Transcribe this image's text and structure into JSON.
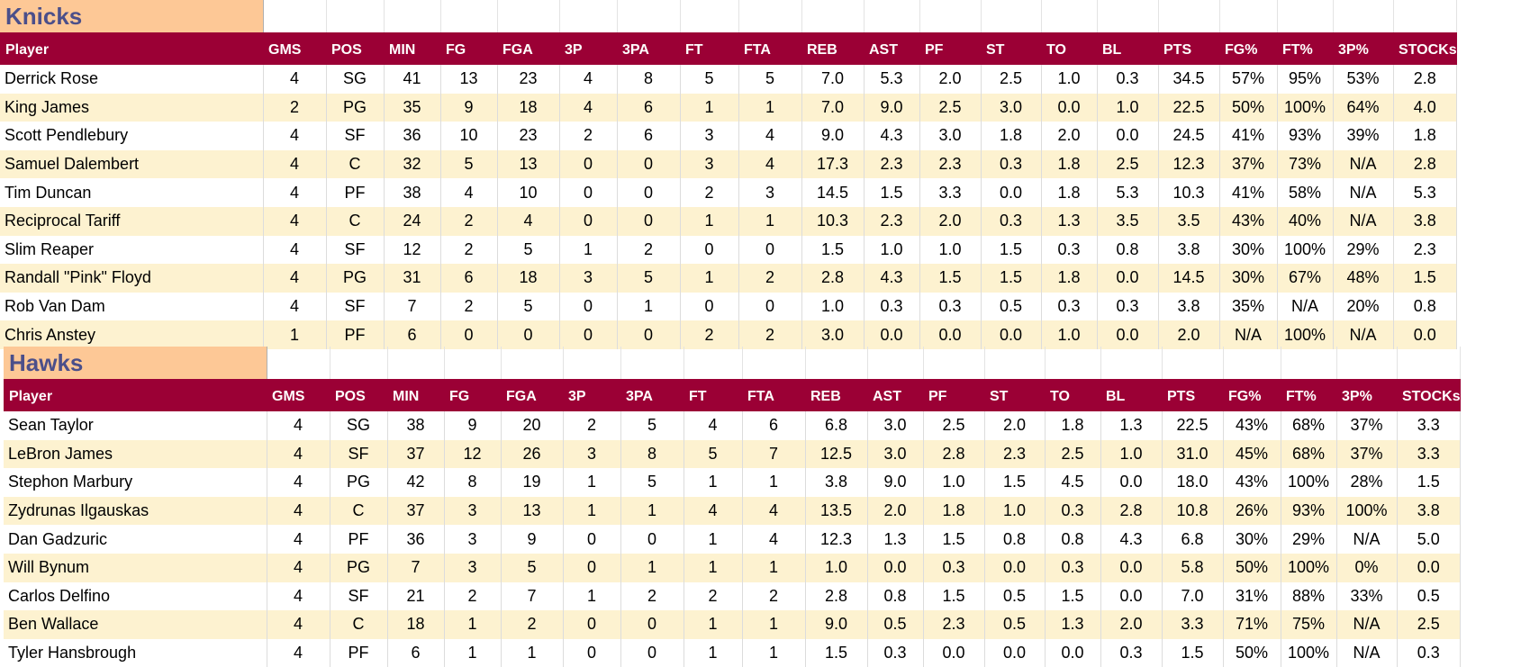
{
  "columns": [
    "Player",
    "GMS",
    "POS",
    "MIN",
    "FG",
    "FGA",
    "3P",
    "3PA",
    "FT",
    "FTA",
    "REB",
    "AST",
    "PF",
    "ST",
    "TO",
    "BL",
    "PTS",
    "FG%",
    "FT%",
    "3P%",
    "STOCKs"
  ],
  "teams": [
    {
      "name": "Knicks",
      "rows": [
        [
          "Derrick Rose",
          "4",
          "SG",
          "41",
          "13",
          "23",
          "4",
          "8",
          "5",
          "5",
          "7.0",
          "5.3",
          "2.0",
          "2.5",
          "1.0",
          "0.3",
          "34.5",
          "57%",
          "95%",
          "53%",
          "2.8"
        ],
        [
          "King James",
          "2",
          "PG",
          "35",
          "9",
          "18",
          "4",
          "6",
          "1",
          "1",
          "7.0",
          "9.0",
          "2.5",
          "3.0",
          "0.0",
          "1.0",
          "22.5",
          "50%",
          "100%",
          "64%",
          "4.0"
        ],
        [
          "Scott Pendlebury",
          "4",
          "SF",
          "36",
          "10",
          "23",
          "2",
          "6",
          "3",
          "4",
          "9.0",
          "4.3",
          "3.0",
          "1.8",
          "2.0",
          "0.0",
          "24.5",
          "41%",
          "93%",
          "39%",
          "1.8"
        ],
        [
          "Samuel Dalembert",
          "4",
          "C",
          "32",
          "5",
          "13",
          "0",
          "0",
          "3",
          "4",
          "17.3",
          "2.3",
          "2.3",
          "0.3",
          "1.8",
          "2.5",
          "12.3",
          "37%",
          "73%",
          "N/A",
          "2.8"
        ],
        [
          "Tim Duncan",
          "4",
          "PF",
          "38",
          "4",
          "10",
          "0",
          "0",
          "2",
          "3",
          "14.5",
          "1.5",
          "3.3",
          "0.0",
          "1.8",
          "5.3",
          "10.3",
          "41%",
          "58%",
          "N/A",
          "5.3"
        ],
        [
          "Reciprocal Tariff",
          "4",
          "C",
          "24",
          "2",
          "4",
          "0",
          "0",
          "1",
          "1",
          "10.3",
          "2.3",
          "2.0",
          "0.3",
          "1.3",
          "3.5",
          "3.5",
          "43%",
          "40%",
          "N/A",
          "3.8"
        ],
        [
          "Slim Reaper",
          "4",
          "SF",
          "12",
          "2",
          "5",
          "1",
          "2",
          "0",
          "0",
          "1.5",
          "1.0",
          "1.0",
          "1.5",
          "0.3",
          "0.8",
          "3.8",
          "30%",
          "100%",
          "29%",
          "2.3"
        ],
        [
          "Randall \"Pink\" Floyd",
          "4",
          "PG",
          "31",
          "6",
          "18",
          "3",
          "5",
          "1",
          "2",
          "2.8",
          "4.3",
          "1.5",
          "1.5",
          "1.8",
          "0.0",
          "14.5",
          "30%",
          "67%",
          "48%",
          "1.5"
        ],
        [
          "Rob Van Dam",
          "4",
          "SF",
          "7",
          "2",
          "5",
          "0",
          "1",
          "0",
          "0",
          "1.0",
          "0.3",
          "0.3",
          "0.5",
          "0.3",
          "0.3",
          "3.8",
          "35%",
          "N/A",
          "20%",
          "0.8"
        ],
        [
          "Chris Anstey",
          "1",
          "PF",
          "6",
          "0",
          "0",
          "0",
          "0",
          "2",
          "2",
          "3.0",
          "0.0",
          "0.0",
          "0.0",
          "1.0",
          "0.0",
          "2.0",
          "N/A",
          "100%",
          "N/A",
          "0.0"
        ]
      ]
    },
    {
      "name": "Hawks",
      "rows": [
        [
          "Sean Taylor",
          "4",
          "SG",
          "38",
          "9",
          "20",
          "2",
          "5",
          "4",
          "6",
          "6.8",
          "3.0",
          "2.5",
          "2.0",
          "1.8",
          "1.3",
          "22.5",
          "43%",
          "68%",
          "37%",
          "3.3"
        ],
        [
          "LeBron James",
          "4",
          "SF",
          "37",
          "12",
          "26",
          "3",
          "8",
          "5",
          "7",
          "12.5",
          "3.0",
          "2.8",
          "2.3",
          "2.5",
          "1.0",
          "31.0",
          "45%",
          "68%",
          "37%",
          "3.3"
        ],
        [
          "Stephon Marbury",
          "4",
          "PG",
          "42",
          "8",
          "19",
          "1",
          "5",
          "1",
          "1",
          "3.8",
          "9.0",
          "1.0",
          "1.5",
          "4.5",
          "0.0",
          "18.0",
          "43%",
          "100%",
          "28%",
          "1.5"
        ],
        [
          "Zydrunas Ilgauskas",
          "4",
          "C",
          "37",
          "3",
          "13",
          "1",
          "1",
          "4",
          "4",
          "13.5",
          "2.0",
          "1.8",
          "1.0",
          "0.3",
          "2.8",
          "10.8",
          "26%",
          "93%",
          "100%",
          "3.8"
        ],
        [
          "Dan Gadzuric",
          "4",
          "PF",
          "36",
          "3",
          "9",
          "0",
          "0",
          "1",
          "4",
          "12.3",
          "1.3",
          "1.5",
          "0.8",
          "0.8",
          "4.3",
          "6.8",
          "30%",
          "29%",
          "N/A",
          "5.0"
        ],
        [
          "Will Bynum",
          "4",
          "PG",
          "7",
          "3",
          "5",
          "0",
          "1",
          "1",
          "1",
          "1.0",
          "0.0",
          "0.3",
          "0.0",
          "0.3",
          "0.0",
          "5.8",
          "50%",
          "100%",
          "0%",
          "0.0"
        ],
        [
          "Carlos Delfino",
          "4",
          "SF",
          "21",
          "2",
          "7",
          "1",
          "2",
          "2",
          "2",
          "2.8",
          "0.8",
          "1.5",
          "0.5",
          "1.5",
          "0.0",
          "7.0",
          "31%",
          "88%",
          "33%",
          "0.5"
        ],
        [
          "Ben Wallace",
          "4",
          "C",
          "18",
          "1",
          "2",
          "0",
          "0",
          "1",
          "1",
          "9.0",
          "0.5",
          "2.3",
          "0.5",
          "1.3",
          "2.0",
          "3.3",
          "71%",
          "75%",
          "N/A",
          "2.5"
        ],
        [
          "Tyler Hansbrough",
          "4",
          "PF",
          "6",
          "1",
          "1",
          "0",
          "0",
          "1",
          "1",
          "1.5",
          "0.3",
          "0.0",
          "0.0",
          "0.0",
          "0.3",
          "1.5",
          "50%",
          "100%",
          "N/A",
          "0.3"
        ]
      ]
    }
  ],
  "colors": {
    "header_bg": "#9b0035",
    "title_bg": "#fdc896",
    "title_text": "#4b4f8a",
    "band": "#fdf2d0"
  }
}
